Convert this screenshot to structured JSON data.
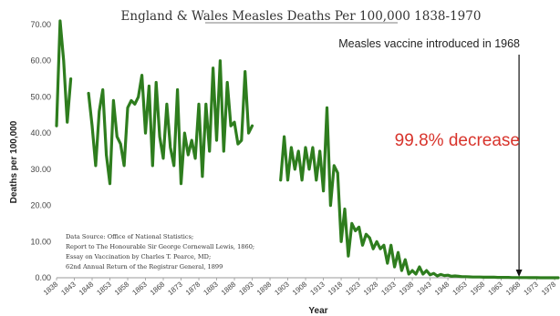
{
  "chart_data": {
    "type": "line",
    "title": "England & Wales Measles Deaths Per 100,000 1838-1970",
    "xlabel": "Year",
    "ylabel": "Deaths per 100,000",
    "xlim": [
      1838,
      1979
    ],
    "ylim": [
      0,
      70
    ],
    "y_ticks": [
      "0.00",
      "10.00",
      "20.00",
      "30.00",
      "40.00",
      "50.00",
      "60.00",
      "70.00"
    ],
    "x_ticks": [
      "1838",
      "1843",
      "1848",
      "1853",
      "1858",
      "1863",
      "1868",
      "1873",
      "1878",
      "1883",
      "1888",
      "1893",
      "1898",
      "1903",
      "1908",
      "1913",
      "1918",
      "1923",
      "1928",
      "1933",
      "1938",
      "1943",
      "1948",
      "1953",
      "1958",
      "1963",
      "1968",
      "1973",
      "1978"
    ],
    "grid": false,
    "line_color": "#2e7d1e",
    "series": [
      {
        "segments": [
          [
            [
              1838,
              42
            ],
            [
              1839,
              71
            ],
            [
              1840,
              60
            ],
            [
              1841,
              43
            ],
            [
              1842,
              55
            ]
          ],
          [
            [
              1847,
              51
            ],
            [
              1848,
              42
            ],
            [
              1849,
              31
            ],
            [
              1850,
              46
            ],
            [
              1851,
              52
            ],
            [
              1852,
              34
            ],
            [
              1853,
              26
            ],
            [
              1854,
              49
            ],
            [
              1855,
              39
            ],
            [
              1856,
              37
            ],
            [
              1857,
              31
            ],
            [
              1858,
              47
            ],
            [
              1859,
              49
            ],
            [
              1860,
              48
            ],
            [
              1861,
              50
            ],
            [
              1862,
              56
            ],
            [
              1863,
              40
            ],
            [
              1864,
              53
            ],
            [
              1865,
              31
            ],
            [
              1866,
              54
            ],
            [
              1867,
              39
            ],
            [
              1868,
              33
            ],
            [
              1869,
              48
            ],
            [
              1870,
              36
            ],
            [
              1871,
              31
            ],
            [
              1872,
              52
            ],
            [
              1873,
              26
            ],
            [
              1874,
              40
            ],
            [
              1875,
              34
            ],
            [
              1876,
              38
            ],
            [
              1877,
              33
            ],
            [
              1878,
              48
            ],
            [
              1879,
              28
            ],
            [
              1880,
              48
            ],
            [
              1881,
              35
            ],
            [
              1882,
              58
            ],
            [
              1883,
              38
            ],
            [
              1884,
              60
            ],
            [
              1885,
              35
            ],
            [
              1886,
              54
            ],
            [
              1887,
              42
            ],
            [
              1888,
              43
            ],
            [
              1889,
              37
            ],
            [
              1890,
              38
            ],
            [
              1891,
              57
            ],
            [
              1892,
              40
            ],
            [
              1893,
              42
            ]
          ],
          [
            [
              1901,
              27
            ],
            [
              1902,
              39
            ],
            [
              1903,
              27
            ],
            [
              1904,
              36
            ],
            [
              1905,
              30
            ],
            [
              1906,
              35
            ],
            [
              1907,
              27
            ],
            [
              1908,
              36
            ],
            [
              1909,
              30
            ],
            [
              1910,
              36
            ],
            [
              1911,
              27
            ],
            [
              1912,
              35
            ],
            [
              1913,
              24
            ],
            [
              1914,
              47
            ],
            [
              1915,
              20
            ],
            [
              1916,
              31
            ],
            [
              1917,
              29
            ],
            [
              1918,
              10
            ],
            [
              1919,
              19
            ],
            [
              1920,
              6
            ],
            [
              1921,
              15
            ],
            [
              1922,
              13
            ],
            [
              1923,
              14
            ],
            [
              1924,
              9
            ],
            [
              1925,
              12
            ],
            [
              1926,
              11
            ],
            [
              1927,
              8
            ],
            [
              1928,
              10
            ],
            [
              1929,
              8
            ],
            [
              1930,
              9
            ],
            [
              1931,
              4
            ],
            [
              1932,
              9
            ],
            [
              1933,
              3
            ],
            [
              1934,
              7
            ],
            [
              1935,
              2
            ],
            [
              1936,
              5
            ],
            [
              1937,
              1
            ],
            [
              1938,
              2
            ],
            [
              1939,
              1
            ],
            [
              1940,
              3
            ],
            [
              1941,
              1
            ],
            [
              1942,
              2
            ],
            [
              1943,
              0.8
            ],
            [
              1944,
              1.2
            ],
            [
              1945,
              0.5
            ],
            [
              1946,
              0.9
            ],
            [
              1947,
              0.6
            ],
            [
              1948,
              0.7
            ],
            [
              1949,
              0.4
            ],
            [
              1950,
              0.5
            ],
            [
              1951,
              0.4
            ],
            [
              1952,
              0.3
            ],
            [
              1953,
              0.3
            ],
            [
              1954,
              0.25
            ],
            [
              1955,
              0.2
            ],
            [
              1956,
              0.2
            ],
            [
              1957,
              0.2
            ],
            [
              1958,
              0.15
            ],
            [
              1959,
              0.15
            ],
            [
              1960,
              0.15
            ],
            [
              1961,
              0.15
            ],
            [
              1962,
              0.1
            ],
            [
              1963,
              0.1
            ],
            [
              1964,
              0.1
            ],
            [
              1965,
              0.1
            ],
            [
              1966,
              0.05
            ],
            [
              1967,
              0.05
            ],
            [
              1968,
              0.05
            ],
            [
              1969,
              0.05
            ],
            [
              1970,
              0.05
            ],
            [
              1971,
              0.02
            ],
            [
              1972,
              0.02
            ],
            [
              1973,
              0.02
            ],
            [
              1974,
              0.01
            ],
            [
              1975,
              0.01
            ],
            [
              1976,
              0.01
            ],
            [
              1977,
              0.01
            ],
            [
              1978,
              0.01
            ],
            [
              1979,
              0.01
            ]
          ]
        ]
      }
    ],
    "annotations": {
      "vaccine_year": 1968,
      "vaccine_note": "Measles vaccine introduced in 1968",
      "decrease_text": "99.8% decrease",
      "decrease_color": "#d8342c",
      "source_lines": [
        "Data Source:  Office of National Statistics;",
        "Report to The Honourable Sir George Cornewall Lewis, 1860;",
        "Essay on Vaccination by Charles T. Pearce, MD;",
        "62nd Annual Return of the Registrar General, 1899"
      ]
    }
  }
}
